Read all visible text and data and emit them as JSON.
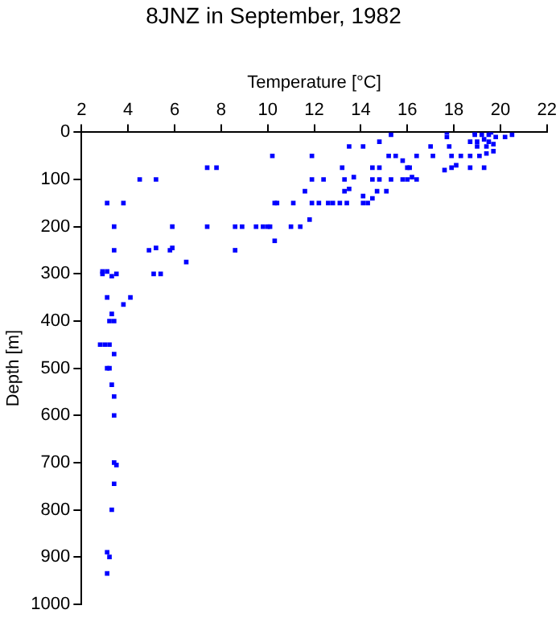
{
  "chart_data": {
    "type": "scatter",
    "title": "8JNZ in September, 1982",
    "xlabel": "Temperature [°C]",
    "ylabel": "Depth [m]",
    "x": [
      3.4,
      3.2,
      3.1,
      3.3,
      3.4,
      3.4,
      3.4,
      3.5,
      3.4,
      3.3,
      3.1,
      3.2,
      3.1,
      4.5,
      5.2,
      7.4,
      7.8,
      10.2,
      3.1,
      3.8,
      10.3,
      3.4,
      7.4,
      8.6,
      8.9,
      9.5,
      9.8,
      10.0,
      10.1,
      5.9,
      3.4,
      4.9,
      5.2,
      5.8,
      5.9,
      8.6,
      6.5,
      10.3,
      2.9,
      2.9,
      3.1,
      3.3,
      3.5,
      5.1,
      5.4,
      3.1,
      4.1,
      3.8,
      3.3,
      3.2,
      3.4,
      2.8,
      3.0,
      3.2,
      11.9,
      13.5,
      14.1,
      14.8,
      15.3,
      15.2,
      15.5,
      16.4,
      17.0,
      17.1,
      17.7,
      17.8,
      17.9,
      18.3,
      18.7,
      19.1,
      19.4,
      19.7,
      20.5,
      20.2,
      18.9,
      19.2,
      19.5,
      19.8,
      19.3,
      19.5,
      19.0,
      18.7,
      19.7,
      19.4,
      19.0,
      17.7,
      18.9,
      19.6,
      13.2,
      14.5,
      14.8,
      15.8,
      16.0,
      16.1,
      17.6,
      17.9,
      18.1,
      18.7,
      19.3,
      11.9,
      12.4,
      13.3,
      13.7,
      14.5,
      14.8,
      15.3,
      15.8,
      16.0,
      16.2,
      16.4,
      13.5,
      13.3,
      11.6,
      15.1,
      14.7,
      14.5,
      14.1,
      10.4,
      11.1,
      11.9,
      12.2,
      12.6,
      12.8,
      13.1,
      13.4,
      14.1,
      14.3,
      11.8,
      11.0,
      11.4
    ],
    "series": [
      {
        "color": "#0000ff",
        "values": [
          470,
          500,
          500,
          535,
          560,
          600,
          700,
          705,
          745,
          800,
          890,
          900,
          935,
          100,
          100,
          75,
          75,
          50,
          150,
          150,
          150,
          200,
          200,
          200,
          200,
          200,
          200,
          200,
          200,
          200,
          250,
          250,
          245,
          250,
          245,
          250,
          275,
          230,
          295,
          300,
          295,
          305,
          300,
          300,
          300,
          350,
          350,
          365,
          385,
          400,
          400,
          450,
          450,
          450,
          50,
          30,
          30,
          20,
          5,
          50,
          50,
          50,
          30,
          50,
          10,
          30,
          50,
          50,
          50,
          50,
          45,
          40,
          5,
          10,
          5,
          5,
          5,
          10,
          15,
          20,
          20,
          20,
          25,
          30,
          30,
          0,
          0,
          0,
          75,
          75,
          75,
          60,
          75,
          75,
          80,
          75,
          70,
          75,
          75,
          100,
          100,
          100,
          95,
          100,
          100,
          100,
          100,
          100,
          95,
          100,
          120,
          125,
          125,
          125,
          125,
          140,
          135,
          150,
          150,
          150,
          150,
          150,
          150,
          150,
          150,
          150,
          150,
          185,
          200,
          200
        ]
      }
    ],
    "xlim": [
      2,
      22
    ],
    "xticks": [
      2,
      4,
      6,
      8,
      10,
      12,
      14,
      16,
      18,
      20,
      22
    ],
    "ylim": [
      1000,
      0
    ],
    "yticks": [
      0,
      100,
      200,
      300,
      400,
      500,
      600,
      700,
      800,
      900,
      1000
    ],
    "grid": false,
    "legend": false,
    "marker": "square"
  }
}
